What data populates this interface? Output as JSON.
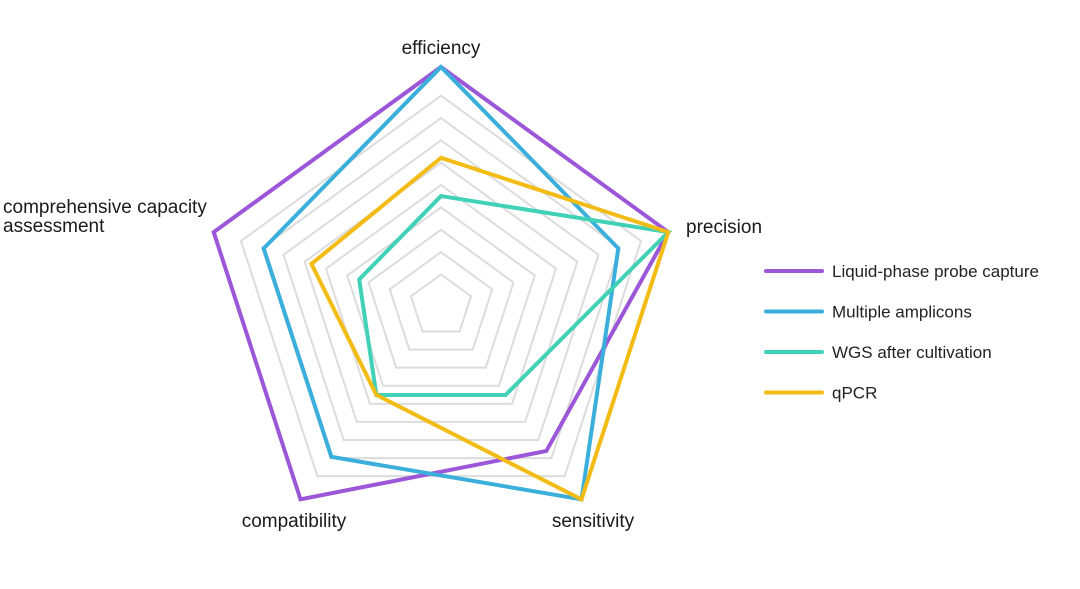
{
  "chart_data": {
    "type": "radar",
    "title": "",
    "axes": [
      {
        "name": "efficiency",
        "lines": [
          "efficiency"
        ]
      },
      {
        "name": "precision",
        "lines": [
          "precision"
        ]
      },
      {
        "name": "sensitivity",
        "lines": [
          "sensitivity"
        ]
      },
      {
        "name": "compatibility",
        "lines": [
          "compatibility"
        ]
      },
      {
        "name": "comprehensive capacity assessment",
        "lines": [
          "comprehensive capacity",
          "assessment"
        ]
      }
    ],
    "range": [
      0,
      10
    ],
    "grid_levels": 9,
    "grid": true,
    "legend_position": "right",
    "series": [
      {
        "name": "Liquid-phase probe capture",
        "color": "#9b57d8",
        "values": [
          10,
          10,
          7.5,
          10,
          10
        ]
      },
      {
        "name": "Multiple amplicons",
        "color": "#3aafdc",
        "values": [
          10,
          7.8,
          10,
          7.8,
          7.8
        ]
      },
      {
        "name": "WGS after cultivation",
        "color": "#40d1b6",
        "values": [
          4.6,
          10,
          4.6,
          4.6,
          3.6
        ]
      },
      {
        "name": "qPCR",
        "color": "#f2bc14",
        "values": [
          6.2,
          10,
          10,
          4.6,
          5.7
        ]
      }
    ]
  }
}
